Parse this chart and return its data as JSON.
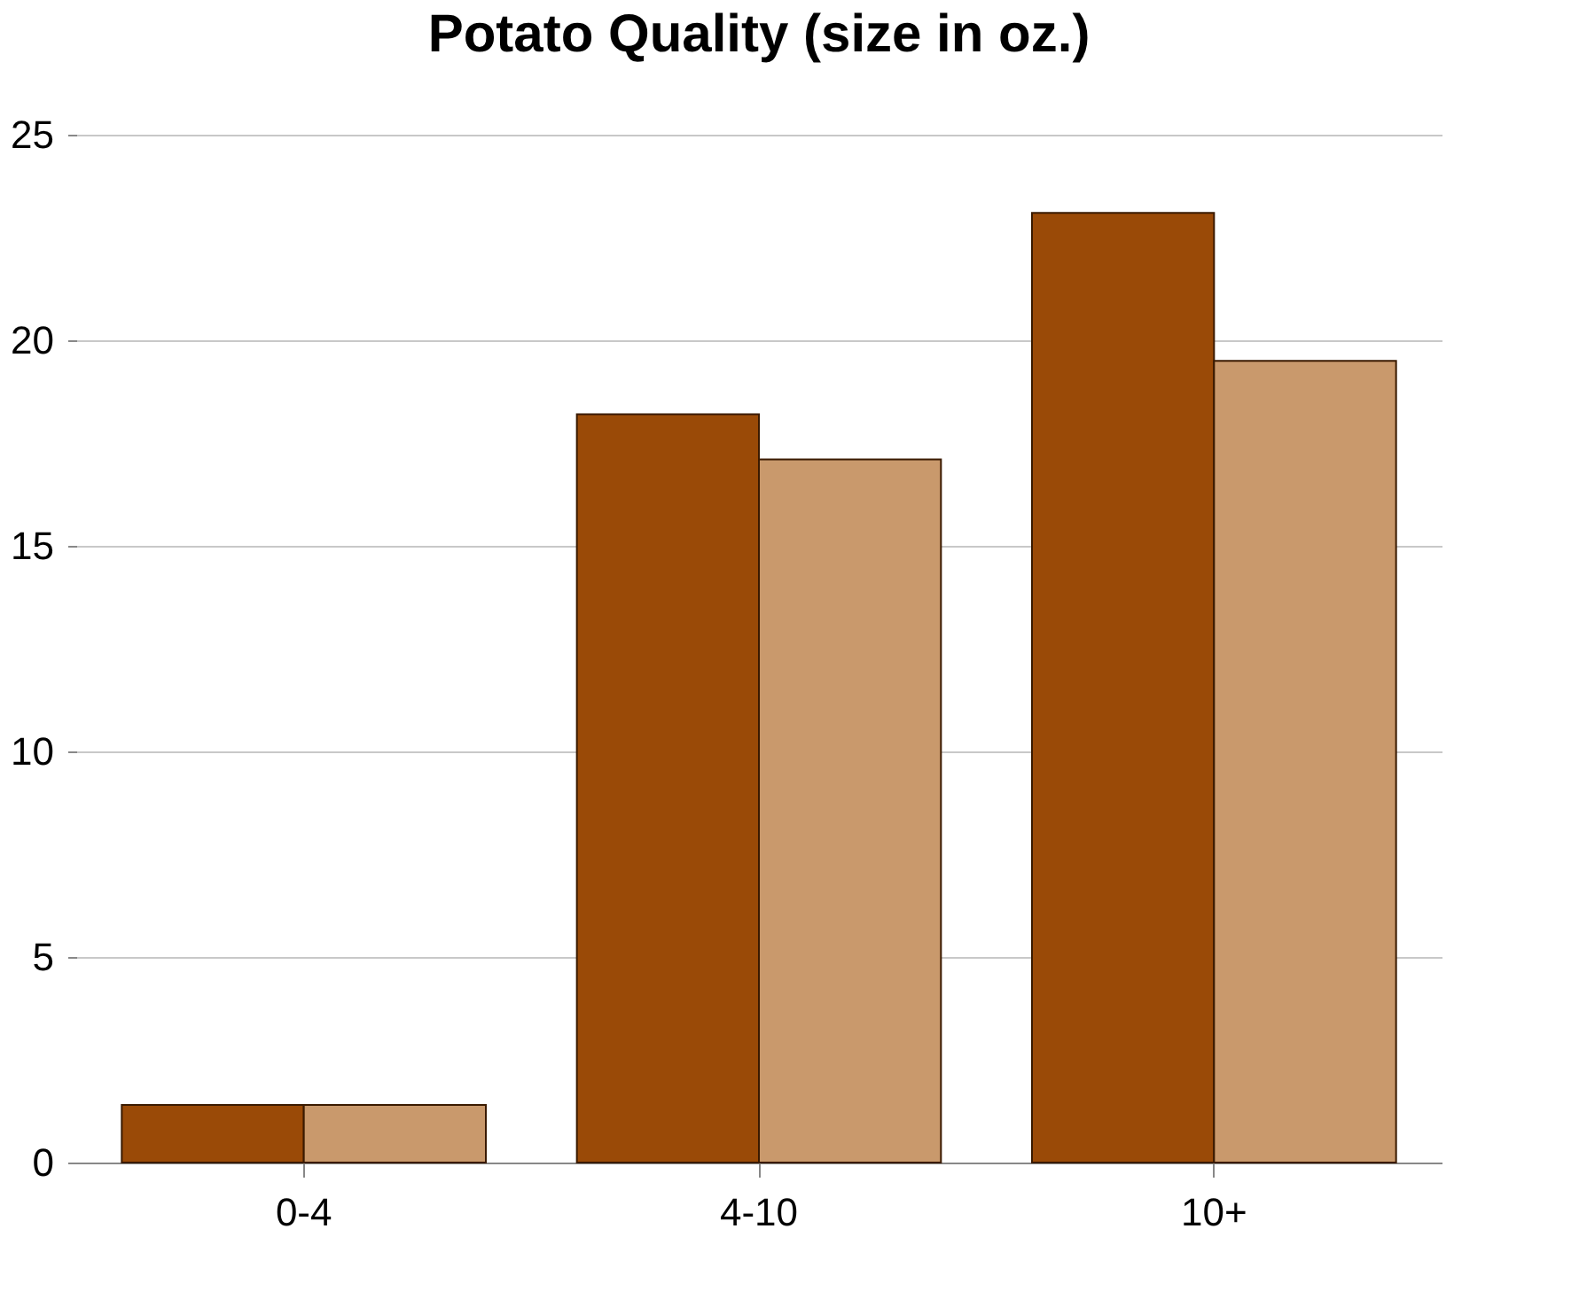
{
  "chart_data": {
    "type": "bar",
    "title": "Potato Quality (size in oz.)",
    "categories": [
      "0-4",
      "4-10",
      "10+"
    ],
    "series": [
      {
        "color": "#9a4a07",
        "values": [
          1.4,
          18.2,
          23.1
        ]
      },
      {
        "color": "#c9996c",
        "values": [
          1.4,
          17.1,
          19.5
        ]
      }
    ],
    "ylim": [
      0,
      25
    ],
    "yticks": [
      0,
      5,
      10,
      15,
      20,
      25
    ],
    "grid": "y",
    "legend": false
  }
}
